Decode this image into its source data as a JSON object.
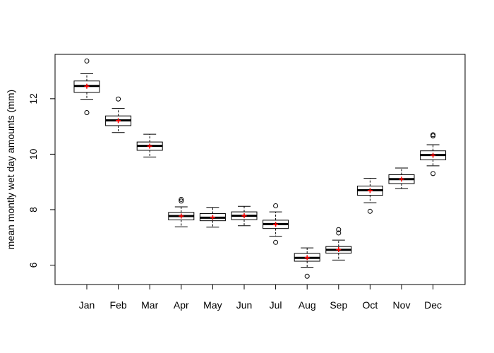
{
  "chart_data": {
    "type": "boxplot",
    "title": "",
    "xlabel": "",
    "ylabel": "mean montly wet day amounts (mm)",
    "ylim": [
      5.3,
      13.6
    ],
    "yticks": [
      6,
      8,
      10,
      12
    ],
    "categories": [
      "Jan",
      "Feb",
      "Mar",
      "Apr",
      "May",
      "Jun",
      "Jul",
      "Aug",
      "Sep",
      "Oct",
      "Nov",
      "Dec"
    ],
    "grid": false,
    "mean_color": "#ff0000",
    "boxes": [
      {
        "category": "Jan",
        "whisker_low": 11.98,
        "q1": 12.23,
        "median": 12.46,
        "q3": 12.64,
        "whisker_high": 12.9,
        "mean": 12.45,
        "outliers": [
          13.36,
          11.5
        ]
      },
      {
        "category": "Feb",
        "whisker_low": 10.78,
        "q1": 11.03,
        "median": 11.22,
        "q3": 11.38,
        "whisker_high": 11.65,
        "mean": 11.21,
        "outliers": [
          11.99
        ]
      },
      {
        "category": "Mar",
        "whisker_low": 9.9,
        "q1": 10.14,
        "median": 10.3,
        "q3": 10.44,
        "whisker_high": 10.72,
        "mean": 10.29,
        "outliers": []
      },
      {
        "category": "Apr",
        "whisker_low": 7.38,
        "q1": 7.63,
        "median": 7.77,
        "q3": 7.9,
        "whisker_high": 8.1,
        "mean": 7.77,
        "outliers": [
          8.31,
          8.37
        ]
      },
      {
        "category": "May",
        "whisker_low": 7.37,
        "q1": 7.6,
        "median": 7.71,
        "q3": 7.86,
        "whisker_high": 8.08,
        "mean": 7.72,
        "outliers": []
      },
      {
        "category": "Jun",
        "whisker_low": 7.42,
        "q1": 7.64,
        "median": 7.78,
        "q3": 7.92,
        "whisker_high": 8.12,
        "mean": 7.78,
        "outliers": []
      },
      {
        "category": "Jul",
        "whisker_low": 7.04,
        "q1": 7.32,
        "median": 7.48,
        "q3": 7.62,
        "whisker_high": 7.92,
        "mean": 7.47,
        "outliers": [
          8.14,
          6.82
        ]
      },
      {
        "category": "Aug",
        "whisker_low": 5.92,
        "q1": 6.14,
        "median": 6.26,
        "q3": 6.42,
        "whisker_high": 6.62,
        "mean": 6.27,
        "outliers": [
          5.6
        ]
      },
      {
        "category": "Sep",
        "whisker_low": 6.18,
        "q1": 6.43,
        "median": 6.55,
        "q3": 6.67,
        "whisker_high": 6.9,
        "mean": 6.56,
        "outliers": [
          7.16,
          7.28
        ]
      },
      {
        "category": "Oct",
        "whisker_low": 8.25,
        "q1": 8.52,
        "median": 8.7,
        "q3": 8.85,
        "whisker_high": 9.13,
        "mean": 8.69,
        "outliers": [
          7.94
        ]
      },
      {
        "category": "Nov",
        "whisker_low": 8.76,
        "q1": 8.94,
        "median": 9.1,
        "q3": 9.26,
        "whisker_high": 9.5,
        "mean": 9.1,
        "outliers": []
      },
      {
        "category": "Dec",
        "whisker_low": 9.58,
        "q1": 9.8,
        "median": 9.97,
        "q3": 10.12,
        "whisker_high": 10.34,
        "mean": 9.96,
        "outliers": [
          9.3,
          10.66,
          10.7
        ]
      }
    ]
  }
}
